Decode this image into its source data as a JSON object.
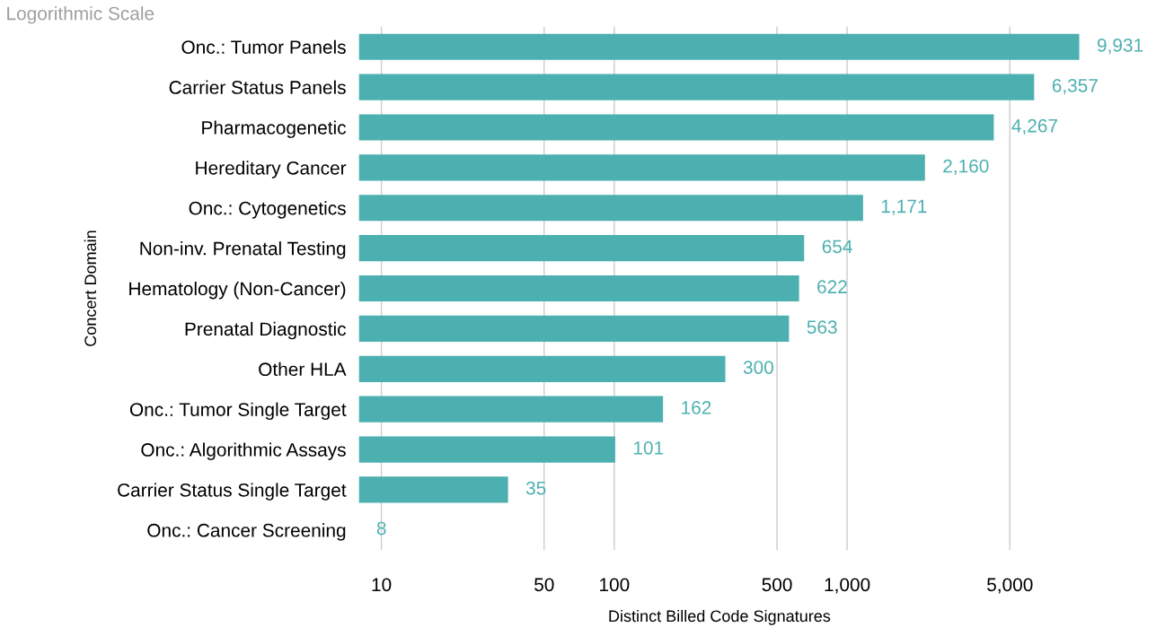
{
  "chart_data": {
    "type": "bar",
    "orientation": "horizontal",
    "title": "Logorithmic Scale",
    "xlabel": "Distinct Billed Code Signatures",
    "ylabel": "Concert Domain",
    "categories": [
      "Onc.: Tumor Panels",
      "Carrier Status Panels",
      "Pharmacogenetic",
      "Hereditary Cancer",
      "Onc.: Cytogenetics",
      "Non-inv. Prenatal Testing",
      "Hematology (Non-Cancer)",
      "Prenatal Diagnostic",
      "Other HLA",
      "Onc.: Tumor Single Target",
      "Onc.: Algorithmic Assays",
      "Carrier Status Single Target",
      "Onc.: Cancer Screening"
    ],
    "values": [
      9931,
      6357,
      4267,
      2160,
      1171,
      654,
      622,
      563,
      300,
      162,
      101,
      35,
      8
    ],
    "value_labels": [
      "9,931",
      "6,357",
      "4,267",
      "2,160",
      "1,171",
      "654",
      "622",
      "563",
      "300",
      "162",
      "101",
      "35",
      "8"
    ],
    "color": "#4db0b0",
    "log": "x",
    "xlim": [
      8,
      10000
    ],
    "xticks": [
      10,
      50,
      100,
      500,
      {
        "value": 1000,
        "label": "1,000"
      },
      {
        "value": 5000,
        "label": "5,000"
      }
    ],
    "grid": "x"
  }
}
